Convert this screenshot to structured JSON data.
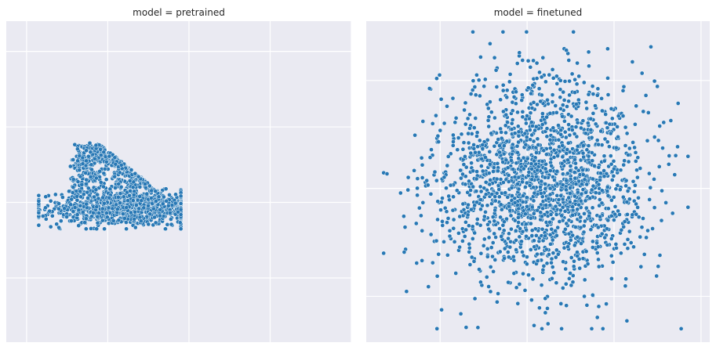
{
  "colors": {
    "background": "#EAEAF2",
    "grid": "#FFFFFF",
    "point_fill": "#2878B5",
    "point_edge": "#FFFFFF"
  },
  "chart_data": [
    {
      "type": "scatter",
      "title": "model = pretrained",
      "grid": true,
      "tick_labels_visible": false,
      "axis_labels_visible": false,
      "clusters": [
        {
          "shape": "ellipse",
          "n": 850,
          "cx": 0.45,
          "cy": -0.18,
          "sx": 1.05,
          "sy": 0.22,
          "clip_x": [
            -1.7,
            1.8
          ],
          "clip_y": [
            -0.7,
            0.45
          ]
        },
        {
          "shape": "triangle",
          "n": 550,
          "vertices": [
            [
              -0.75,
              1.5
            ],
            [
              -0.2,
              1.55
            ],
            [
              1.6,
              0.0
            ],
            [
              -1.0,
              0.1
            ]
          ]
        },
        {
          "shape": "spike",
          "n": 40,
          "cx": -0.6,
          "cy": 1.2,
          "sx": 0.12,
          "sy": 0.22
        }
      ],
      "xlim": [
        -2.5,
        6.0
      ],
      "ylim": [
        -3.7,
        4.8
      ]
    },
    {
      "type": "scatter",
      "title": "model = finetuned",
      "grid": true,
      "tick_labels_visible": false,
      "axis_labels_visible": false,
      "clusters": [
        {
          "shape": "ellipse",
          "n": 1900,
          "cx": 0.3,
          "cy": 0.15,
          "sx": 1.2,
          "sy": 0.95,
          "clip_x": [
            -3.3,
            3.7
          ],
          "clip_y": [
            -2.6,
            2.9
          ]
        }
      ],
      "xlim": [
        -3.7,
        4.2
      ],
      "ylim": [
        -2.85,
        3.1
      ]
    }
  ]
}
